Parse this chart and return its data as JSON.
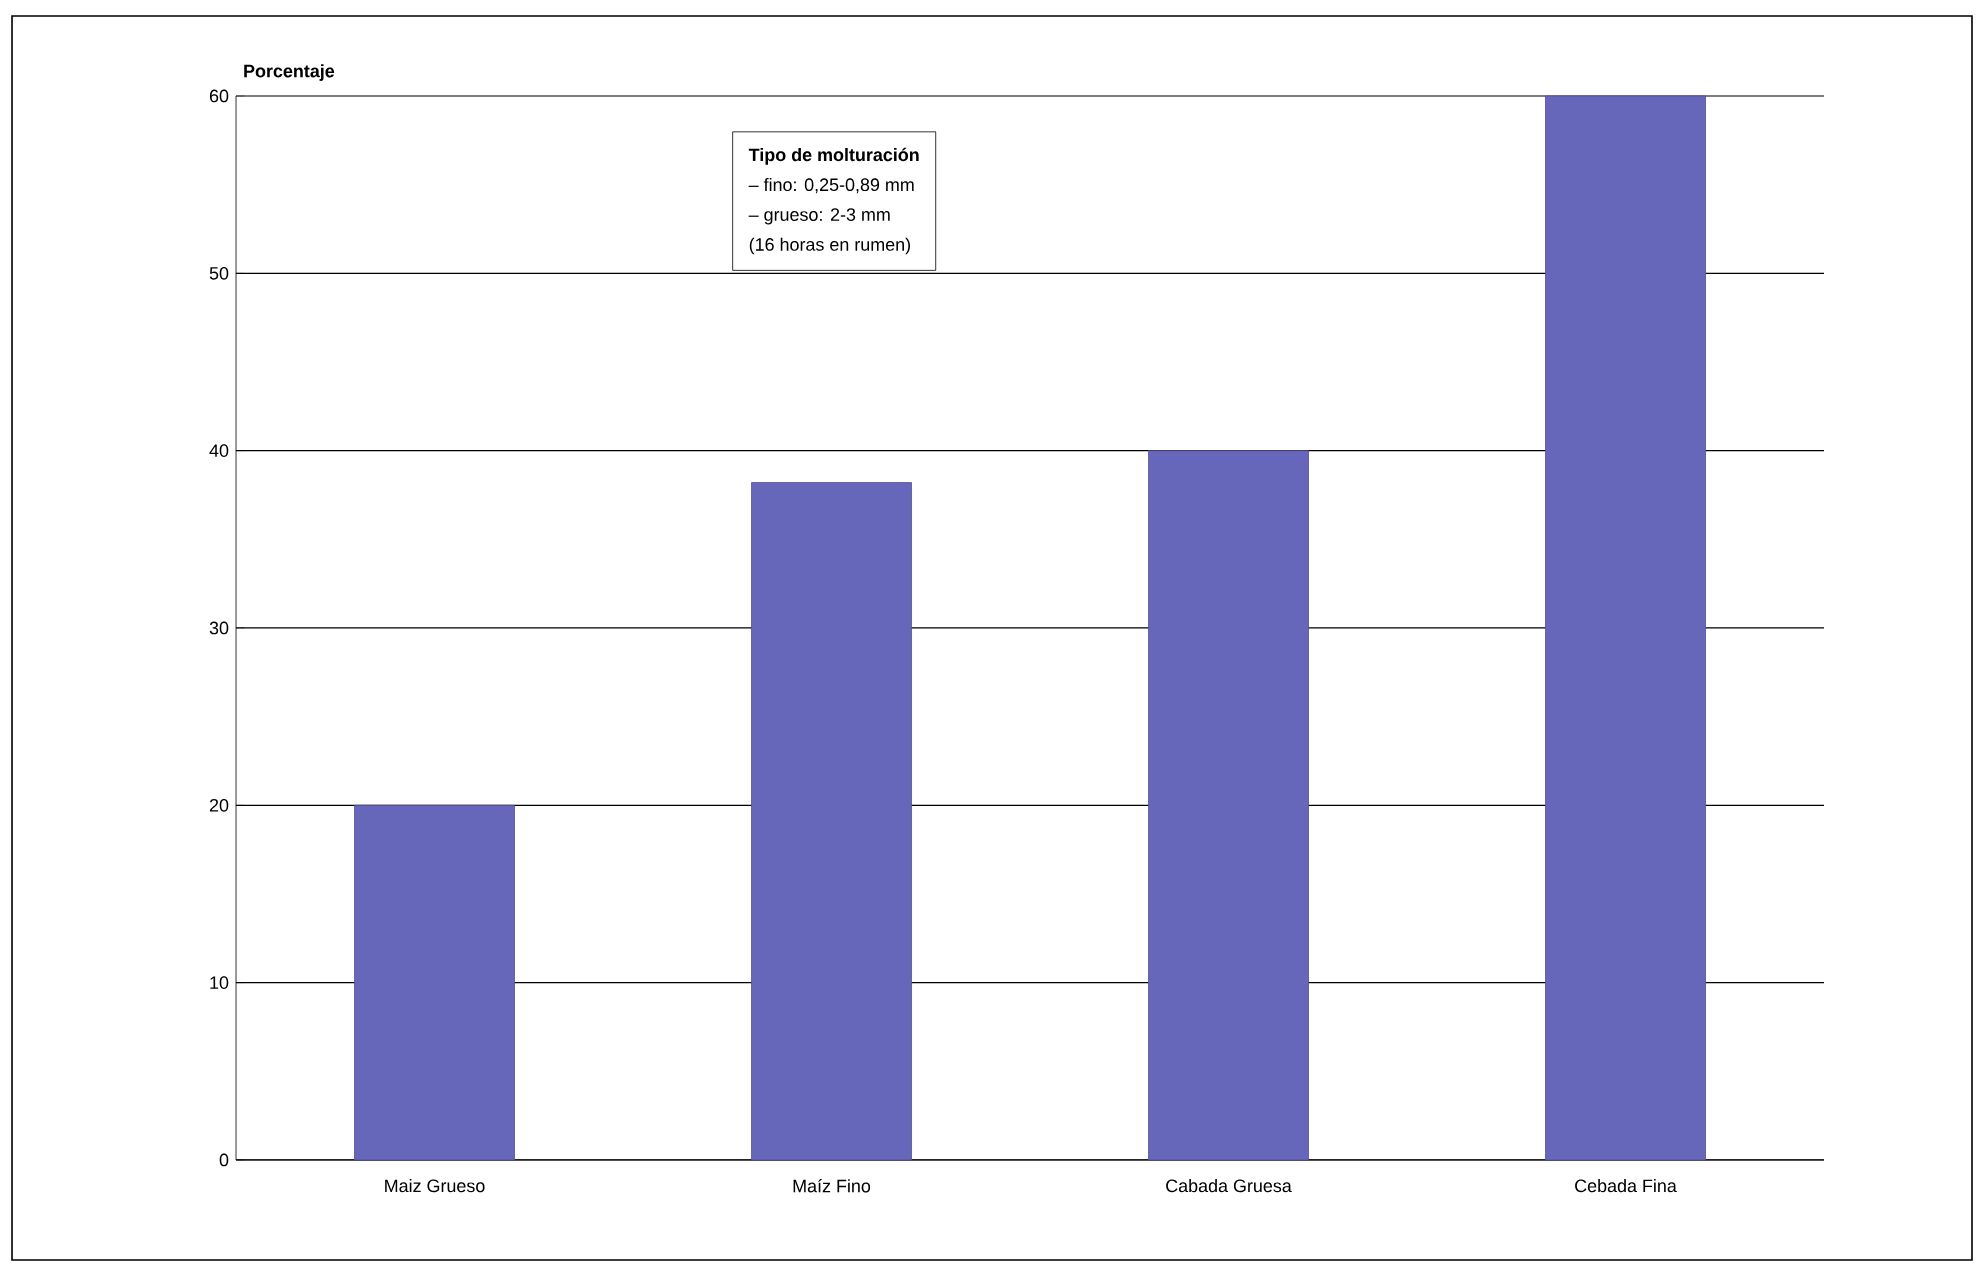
{
  "chart_data": {
    "type": "bar",
    "ylabel": "Porcentaje",
    "categories": [
      "Maiz Grueso",
      "Maíz Fino",
      "Cabada Gruesa",
      "Cebada Fina"
    ],
    "values": [
      20,
      38.2,
      40,
      60
    ],
    "color": "#6666bb",
    "ylim": [
      0,
      60
    ],
    "yticks": [
      0,
      10,
      20,
      30,
      40,
      50,
      60
    ],
    "grid": "y",
    "annotations": [
      "**Tipo de molturación**",
      "– fino: 0,25-0,89 mm",
      "– grueso: 2-3 mm",
      "(16 horas en rumen)"
    ]
  }
}
